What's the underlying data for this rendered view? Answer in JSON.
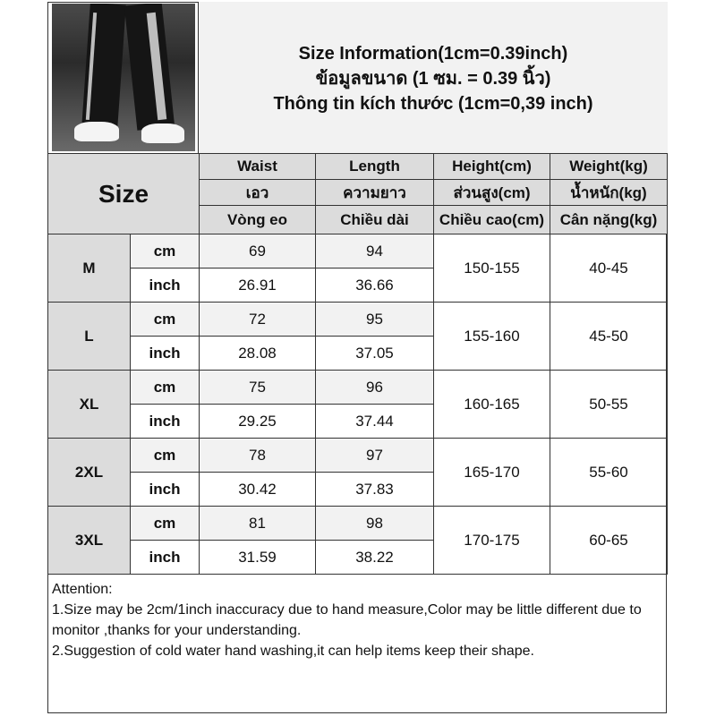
{
  "header": {
    "line1": "Size Information(1cm=0.39inch)",
    "line2": "ข้อมูลขนาด (1 ซม. = 0.39 นิ้ว)",
    "line3": "Thông tin kích thước (1cm=0,39 inch)"
  },
  "table": {
    "size_label": "Size",
    "columns": [
      {
        "en": "Waist",
        "th": "เอว",
        "vi": "Vòng eo"
      },
      {
        "en": "Length",
        "th": "ความยาว",
        "vi": "Chiều dài"
      },
      {
        "en": "Height(cm)",
        "th": "ส่วนสูง(cm)",
        "vi": "Chiều cao(cm)"
      },
      {
        "en": "Weight(kg)",
        "th": "น้ำหนัก(kg)",
        "vi": "Cân nặng(kg)"
      }
    ],
    "unit_cm": "cm",
    "unit_inch": "inch",
    "rows": [
      {
        "size": "M",
        "waist_cm": "69",
        "length_cm": "94",
        "waist_in": "26.91",
        "length_in": "36.66",
        "height": "150-155",
        "weight": "40-45"
      },
      {
        "size": "L",
        "waist_cm": "72",
        "length_cm": "95",
        "waist_in": "28.08",
        "length_in": "37.05",
        "height": "155-160",
        "weight": "45-50"
      },
      {
        "size": "XL",
        "waist_cm": "75",
        "length_cm": "96",
        "waist_in": "29.25",
        "length_in": "37.44",
        "height": "160-165",
        "weight": "50-55"
      },
      {
        "size": "2XL",
        "waist_cm": "78",
        "length_cm": "97",
        "waist_in": "30.42",
        "length_in": "37.83",
        "height": "165-170",
        "weight": "55-60"
      },
      {
        "size": "3XL",
        "waist_cm": "81",
        "length_cm": "98",
        "waist_in": "31.59",
        "length_in": "38.22",
        "height": "170-175",
        "weight": "60-65"
      }
    ]
  },
  "attention": {
    "title": "Attention:",
    "note1": "1.Size may be 2cm/1inch inaccuracy due to hand measure,Color may be little different due to monitor ,thanks for your understanding.",
    "note2": "2.Suggestion of cold water hand washing,it can help items keep their shape."
  }
}
